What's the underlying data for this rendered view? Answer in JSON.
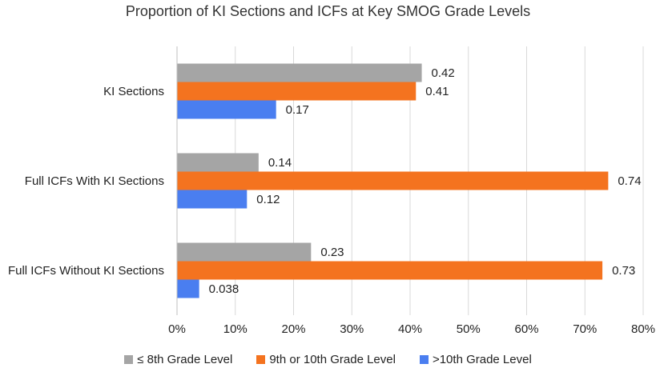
{
  "chart_data": {
    "type": "bar",
    "orientation": "horizontal",
    "title": "Proportion of KI Sections and ICFs at Key SMOG Grade Levels",
    "categories": [
      "KI Sections",
      "Full ICFs With KI Sections",
      "Full ICFs Without KI Sections"
    ],
    "series": [
      {
        "name": "≤ 8th Grade Level",
        "color": "#a5a5a5",
        "values": [
          0.42,
          0.14,
          0.23
        ],
        "labels": [
          "0.42",
          "0.14",
          "0.23"
        ]
      },
      {
        "name": "9th or 10th Grade Level",
        "color": "#f4731f",
        "values": [
          0.41,
          0.74,
          0.73
        ],
        "labels": [
          "0.41",
          "0.74",
          "0.73"
        ]
      },
      {
        "name": ">10th Grade Level",
        "color": "#4a7ef0",
        "values": [
          0.17,
          0.12,
          0.038
        ],
        "labels": [
          "0.17",
          "0.12",
          "0.038"
        ]
      }
    ],
    "xlim": [
      0,
      0.8
    ],
    "xticks": [
      "0%",
      "10%",
      "20%",
      "30%",
      "40%",
      "50%",
      "60%",
      "70%",
      "80%"
    ],
    "grid": true,
    "legend": "bottom"
  }
}
